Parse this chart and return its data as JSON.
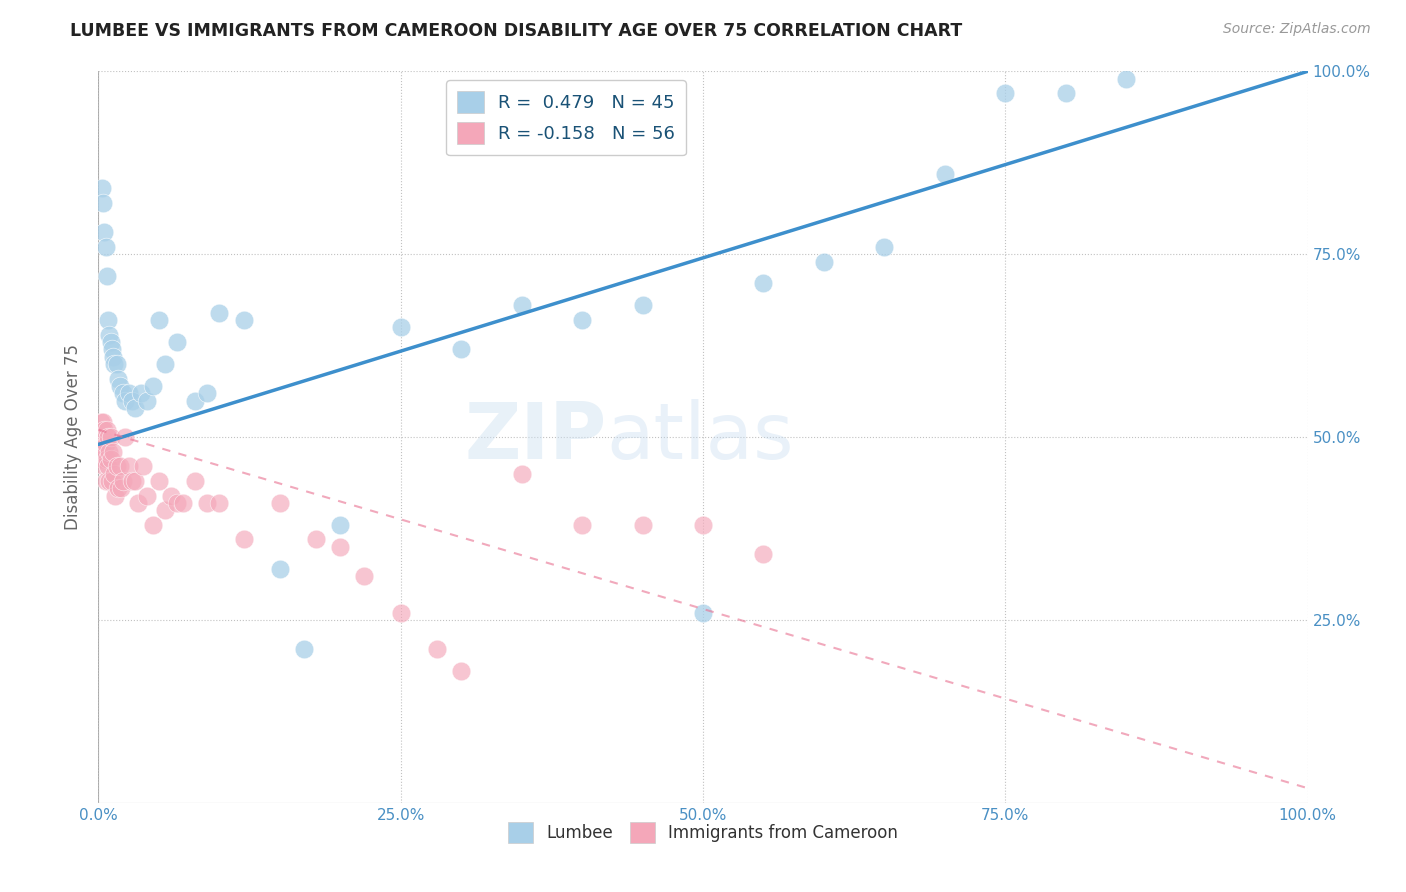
{
  "title": "LUMBEE VS IMMIGRANTS FROM CAMEROON DISABILITY AGE OVER 75 CORRELATION CHART",
  "source": "Source: ZipAtlas.com",
  "ylabel": "Disability Age Over 75",
  "lumbee_R": 0.479,
  "lumbee_N": 45,
  "cameroon_R": -0.158,
  "cameroon_N": 56,
  "lumbee_color": "#a8cfe8",
  "cameroon_color": "#f4a7b9",
  "lumbee_line_color": "#3d8fcc",
  "cameroon_line_color": "#e87090",
  "lumbee_x": [
    0.003,
    0.004,
    0.005,
    0.006,
    0.007,
    0.008,
    0.009,
    0.01,
    0.011,
    0.012,
    0.013,
    0.015,
    0.016,
    0.018,
    0.02,
    0.022,
    0.025,
    0.028,
    0.03,
    0.035,
    0.04,
    0.045,
    0.05,
    0.055,
    0.065,
    0.08,
    0.09,
    0.1,
    0.12,
    0.15,
    0.17,
    0.2,
    0.25,
    0.3,
    0.35,
    0.4,
    0.45,
    0.5,
    0.55,
    0.6,
    0.65,
    0.7,
    0.75,
    0.8,
    0.85
  ],
  "lumbee_y": [
    0.84,
    0.82,
    0.78,
    0.76,
    0.72,
    0.66,
    0.64,
    0.63,
    0.62,
    0.61,
    0.6,
    0.6,
    0.58,
    0.57,
    0.56,
    0.55,
    0.56,
    0.55,
    0.54,
    0.56,
    0.55,
    0.57,
    0.66,
    0.6,
    0.63,
    0.55,
    0.56,
    0.67,
    0.66,
    0.32,
    0.21,
    0.38,
    0.65,
    0.62,
    0.68,
    0.66,
    0.68,
    0.26,
    0.71,
    0.74,
    0.76,
    0.86,
    0.97,
    0.97,
    0.99
  ],
  "cameroon_x": [
    0.002,
    0.002,
    0.003,
    0.003,
    0.004,
    0.004,
    0.005,
    0.005,
    0.006,
    0.006,
    0.007,
    0.007,
    0.008,
    0.008,
    0.009,
    0.009,
    0.01,
    0.01,
    0.011,
    0.012,
    0.013,
    0.014,
    0.015,
    0.016,
    0.018,
    0.019,
    0.02,
    0.022,
    0.025,
    0.028,
    0.03,
    0.033,
    0.037,
    0.04,
    0.045,
    0.05,
    0.055,
    0.06,
    0.065,
    0.07,
    0.08,
    0.09,
    0.1,
    0.12,
    0.15,
    0.18,
    0.2,
    0.22,
    0.25,
    0.28,
    0.3,
    0.35,
    0.4,
    0.45,
    0.5,
    0.55
  ],
  "cameroon_y": [
    0.52,
    0.49,
    0.5,
    0.47,
    0.52,
    0.48,
    0.51,
    0.46,
    0.49,
    0.44,
    0.51,
    0.47,
    0.5,
    0.46,
    0.48,
    0.44,
    0.5,
    0.47,
    0.44,
    0.48,
    0.45,
    0.42,
    0.46,
    0.43,
    0.46,
    0.43,
    0.44,
    0.5,
    0.46,
    0.44,
    0.44,
    0.41,
    0.46,
    0.42,
    0.38,
    0.44,
    0.4,
    0.42,
    0.41,
    0.41,
    0.44,
    0.41,
    0.41,
    0.36,
    0.41,
    0.36,
    0.35,
    0.31,
    0.26,
    0.21,
    0.18,
    0.45,
    0.38,
    0.38,
    0.38,
    0.34
  ],
  "lumbee_line": [
    0.49,
    1.0
  ],
  "cameroon_line": [
    0.51,
    0.02
  ],
  "xlim": [
    0,
    1.0
  ],
  "ylim": [
    0,
    1.0
  ],
  "xtick_vals": [
    0,
    0.25,
    0.5,
    0.75,
    1.0
  ],
  "xtick_labels": [
    "0.0%",
    "25.0%",
    "50.0%",
    "75.0%",
    "100.0%"
  ],
  "ytick_vals": [
    0.25,
    0.5,
    0.75,
    1.0
  ],
  "ytick_labels": [
    "25.0%",
    "50.0%",
    "75.0%",
    "100.0%"
  ]
}
